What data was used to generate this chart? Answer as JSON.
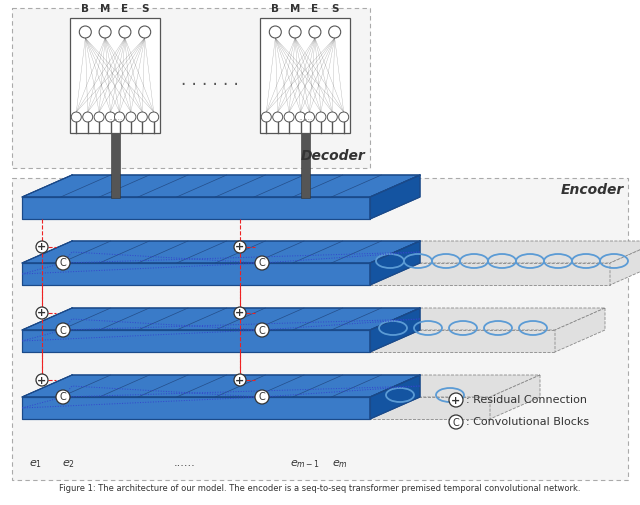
{
  "fig_width": 6.4,
  "fig_height": 5.05,
  "blue": "#3A7BC8",
  "blue_dark": "#1A4A8A",
  "blue_light": "#5B9BD5",
  "gray_ext": "#d8d8d8",
  "decoder_label": "Decoder",
  "encoder_label": "Encoder",
  "red": "#EE2222",
  "blue_conn": "#3344CC",
  "legend_plus": ": Residual Connection",
  "legend_c": ": Convolutional Blocks",
  "caption": "Figure 1: The architecture of our model. The encoder is a seq-to-seq transformer premised temporal convolutional network."
}
